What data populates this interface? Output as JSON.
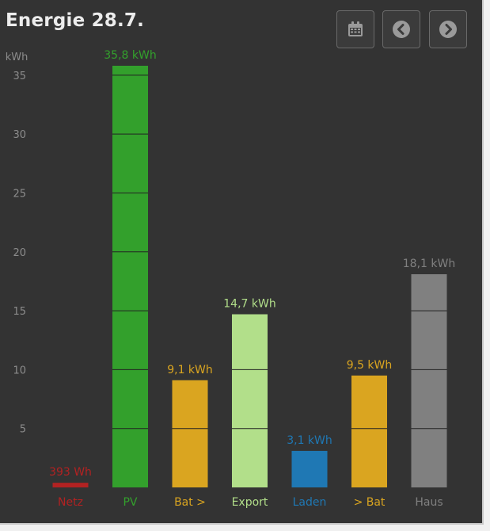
{
  "header": {
    "title": "Energie 28.7.",
    "buttons": [
      {
        "name": "calendar-icon"
      },
      {
        "name": "chevron-left-icon"
      },
      {
        "name": "chevron-right-icon"
      }
    ]
  },
  "chart_data": {
    "type": "bar",
    "title": "Energie 28.7.",
    "ylabel": "kWh",
    "ylim": [
      0,
      36
    ],
    "yticks": [
      5,
      10,
      15,
      20,
      25,
      30,
      35
    ],
    "grid": false,
    "categories": [
      "Netz",
      "PV",
      "Bat >",
      "Export",
      "Laden",
      "> Bat",
      "Haus"
    ],
    "values": [
      0.393,
      35.8,
      9.1,
      14.7,
      3.1,
      9.5,
      18.1
    ],
    "value_labels": [
      "393 Wh",
      "35,8 kWh",
      "9,1 kWh",
      "14,7 kWh",
      "3,1 kWh",
      "9,5 kWh",
      "18,1 kWh"
    ],
    "colors": [
      "#b22222",
      "#33a02c",
      "#daa520",
      "#b2df8a",
      "#1f78b4",
      "#daa520",
      "#808080"
    ]
  }
}
